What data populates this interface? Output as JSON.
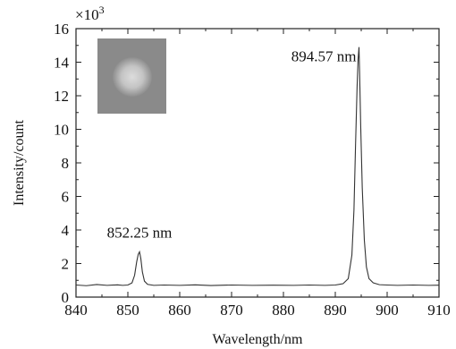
{
  "chart_data": {
    "type": "line",
    "title": "",
    "xlabel": "Wavelength/nm",
    "ylabel": "Intensity/count",
    "y_multiplier_base": "×10",
    "y_multiplier_exp": "3",
    "xlim": [
      840,
      910
    ],
    "ylim": [
      0,
      16
    ],
    "x_ticks": [
      840,
      850,
      860,
      870,
      880,
      890,
      900,
      910
    ],
    "y_ticks": [
      0,
      2,
      4,
      6,
      8,
      10,
      12,
      14,
      16
    ],
    "grid": false,
    "legend": "none",
    "line_color": "#333333",
    "series": [
      {
        "x": [
          840,
          842,
          844,
          846,
          848,
          849,
          850,
          850.8,
          851.3,
          851.7,
          852.0,
          852.25,
          852.5,
          852.8,
          853.2,
          853.8,
          855,
          857,
          860,
          863,
          866,
          870,
          874,
          878,
          882,
          885,
          888,
          890,
          891.5,
          892.5,
          893.2,
          893.6,
          893.9,
          894.2,
          894.4,
          894.57,
          894.7,
          894.9,
          895.2,
          895.6,
          896.0,
          896.5,
          897.3,
          898.5,
          900,
          902,
          905,
          908,
          910
        ],
        "y": [
          0.72,
          0.68,
          0.75,
          0.7,
          0.73,
          0.7,
          0.72,
          0.85,
          1.3,
          2.1,
          2.55,
          2.7,
          2.3,
          1.5,
          0.95,
          0.76,
          0.7,
          0.72,
          0.7,
          0.73,
          0.69,
          0.72,
          0.7,
          0.71,
          0.7,
          0.72,
          0.7,
          0.72,
          0.8,
          1.1,
          2.5,
          5.2,
          9.0,
          12.5,
          14.2,
          14.9,
          13.2,
          10.2,
          6.5,
          3.4,
          1.8,
          1.1,
          0.85,
          0.74,
          0.72,
          0.7,
          0.72,
          0.7,
          0.71
        ]
      }
    ],
    "annotations": [
      {
        "text": "852.25 nm",
        "x": 852.25,
        "y": 2.7
      },
      {
        "text": "894.57 nm",
        "x": 894.57,
        "y": 14.9
      }
    ]
  },
  "inset": {
    "image_description": "grey square with bright circular spot",
    "background_color": "#8a8a8a",
    "spot_color": "#d2d2d2"
  }
}
